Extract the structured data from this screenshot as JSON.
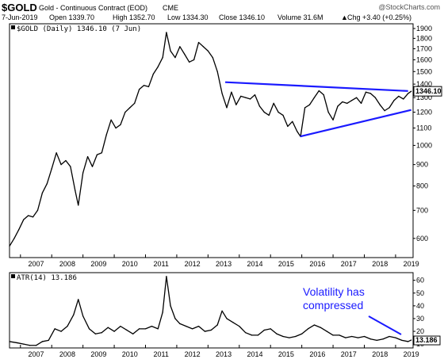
{
  "header": {
    "symbol": "$GOLD",
    "name": "Gold - Continuous Contract (EOD)",
    "exchange": "CME",
    "watermark": "@StockCharts.com",
    "date": "7-Jun-2019",
    "open": "Open 1339.70",
    "high": "High 1352.70",
    "low": "Low 1334.30",
    "close": "Close 1346.10",
    "volume": "Volume 31.6M",
    "chg": "Chg +3.40 (+0.25%)",
    "chg_arrow": "▲"
  },
  "chart_data": [
    {
      "type": "line",
      "legend": "$GOLD (Daily) 1346.10 (7 Jun)",
      "y_scale": "log",
      "ylim": [
        540,
        1950
      ],
      "xlim": [
        2006.65,
        2019.56
      ],
      "x_ticks": [
        "2007",
        "2008",
        "2009",
        "2010",
        "2011",
        "2012",
        "2013",
        "2014",
        "2015",
        "2016",
        "2017",
        "2018",
        "2019"
      ],
      "y_ticks": [
        "1900",
        "1800",
        "1700",
        "1600",
        "1500",
        "1400",
        "1300",
        "1200",
        "1100",
        "1000",
        "900",
        "800",
        "700",
        "600"
      ],
      "last_value": "1346.10",
      "series_color": "#000000",
      "grid": false,
      "trendlines": [
        {
          "points": [
            [
              2013.55,
              1415
            ],
            [
              2019.4,
              1348
            ]
          ],
          "color": "#1a1aff"
        },
        {
          "points": [
            [
              2015.95,
              1050
            ],
            [
              2019.5,
              1215
            ]
          ],
          "color": "#1a1aff"
        }
      ],
      "x": [
        2006.65,
        2006.8,
        2006.95,
        2007.1,
        2007.25,
        2007.4,
        2007.55,
        2007.7,
        2007.85,
        2008.0,
        2008.15,
        2008.3,
        2008.45,
        2008.6,
        2008.75,
        2008.85,
        2009.0,
        2009.15,
        2009.3,
        2009.45,
        2009.6,
        2009.75,
        2009.9,
        2010.05,
        2010.2,
        2010.35,
        2010.5,
        2010.65,
        2010.8,
        2010.95,
        2011.1,
        2011.25,
        2011.4,
        2011.55,
        2011.67,
        2011.8,
        2011.95,
        2012.1,
        2012.25,
        2012.4,
        2012.55,
        2012.7,
        2012.85,
        2013.0,
        2013.15,
        2013.3,
        2013.45,
        2013.6,
        2013.75,
        2013.9,
        2014.05,
        2014.2,
        2014.35,
        2014.5,
        2014.65,
        2014.8,
        2014.95,
        2015.1,
        2015.25,
        2015.4,
        2015.55,
        2015.7,
        2015.85,
        2015.96,
        2016.1,
        2016.25,
        2016.4,
        2016.55,
        2016.7,
        2016.85,
        2017.0,
        2017.15,
        2017.3,
        2017.45,
        2017.6,
        2017.75,
        2017.9,
        2018.05,
        2018.2,
        2018.35,
        2018.5,
        2018.65,
        2018.8,
        2018.95,
        2019.1,
        2019.25,
        2019.4,
        2019.5
      ],
      "y": [
        575,
        600,
        630,
        665,
        680,
        675,
        700,
        770,
        810,
        880,
        960,
        900,
        920,
        890,
        780,
        720,
        860,
        940,
        890,
        950,
        960,
        1060,
        1150,
        1100,
        1120,
        1200,
        1230,
        1260,
        1360,
        1390,
        1380,
        1480,
        1540,
        1620,
        1860,
        1680,
        1620,
        1720,
        1650,
        1580,
        1600,
        1760,
        1720,
        1680,
        1620,
        1500,
        1330,
        1230,
        1340,
        1250,
        1310,
        1300,
        1290,
        1320,
        1240,
        1200,
        1180,
        1260,
        1200,
        1180,
        1110,
        1140,
        1080,
        1050,
        1230,
        1250,
        1300,
        1350,
        1320,
        1200,
        1150,
        1240,
        1270,
        1260,
        1280,
        1300,
        1260,
        1340,
        1330,
        1300,
        1250,
        1210,
        1230,
        1280,
        1310,
        1290,
        1330,
        1346
      ]
    },
    {
      "type": "line",
      "legend": "ATR(14) 13.186",
      "ylim": [
        7,
        66
      ],
      "xlim": [
        2006.65,
        2019.56
      ],
      "x_ticks": [
        "2007",
        "2008",
        "2009",
        "2010",
        "2011",
        "2012",
        "2013",
        "2014",
        "2015",
        "2016",
        "2017",
        "2018",
        "2019"
      ],
      "y_ticks": [
        "60",
        "50",
        "40",
        "30",
        "20",
        "10"
      ],
      "last_value": "13.186",
      "series_color": "#000000",
      "annotation": {
        "text_line1": "Volatility has",
        "text_line2": "compressed",
        "color": "#1a1aff"
      },
      "x": [
        2006.65,
        2006.9,
        2007.1,
        2007.3,
        2007.5,
        2007.7,
        2007.9,
        2008.1,
        2008.3,
        2008.5,
        2008.7,
        2008.85,
        2009.0,
        2009.2,
        2009.4,
        2009.6,
        2009.8,
        2010.0,
        2010.2,
        2010.4,
        2010.6,
        2010.8,
        2011.0,
        2011.2,
        2011.4,
        2011.55,
        2011.67,
        2011.8,
        2011.95,
        2012.1,
        2012.3,
        2012.5,
        2012.7,
        2012.9,
        2013.1,
        2013.3,
        2013.45,
        2013.6,
        2013.8,
        2014.0,
        2014.2,
        2014.4,
        2014.6,
        2014.8,
        2015.0,
        2015.2,
        2015.4,
        2015.6,
        2015.8,
        2016.0,
        2016.2,
        2016.4,
        2016.6,
        2016.8,
        2017.0,
        2017.2,
        2017.4,
        2017.6,
        2017.8,
        2018.0,
        2018.2,
        2018.4,
        2018.6,
        2018.8,
        2019.0,
        2019.2,
        2019.4,
        2019.5
      ],
      "y": [
        12,
        11,
        10,
        9,
        9,
        12,
        13,
        22,
        20,
        24,
        33,
        45,
        32,
        22,
        18,
        19,
        23,
        20,
        24,
        21,
        18,
        22,
        22,
        24,
        22,
        35,
        63,
        40,
        30,
        26,
        24,
        22,
        24,
        20,
        21,
        25,
        36,
        30,
        27,
        24,
        19,
        17,
        17,
        21,
        22,
        18,
        16,
        15,
        16,
        18,
        22,
        25,
        23,
        20,
        17,
        17,
        15,
        16,
        15,
        16,
        14,
        13,
        14,
        16,
        15,
        13,
        12,
        13.186
      ]
    }
  ]
}
